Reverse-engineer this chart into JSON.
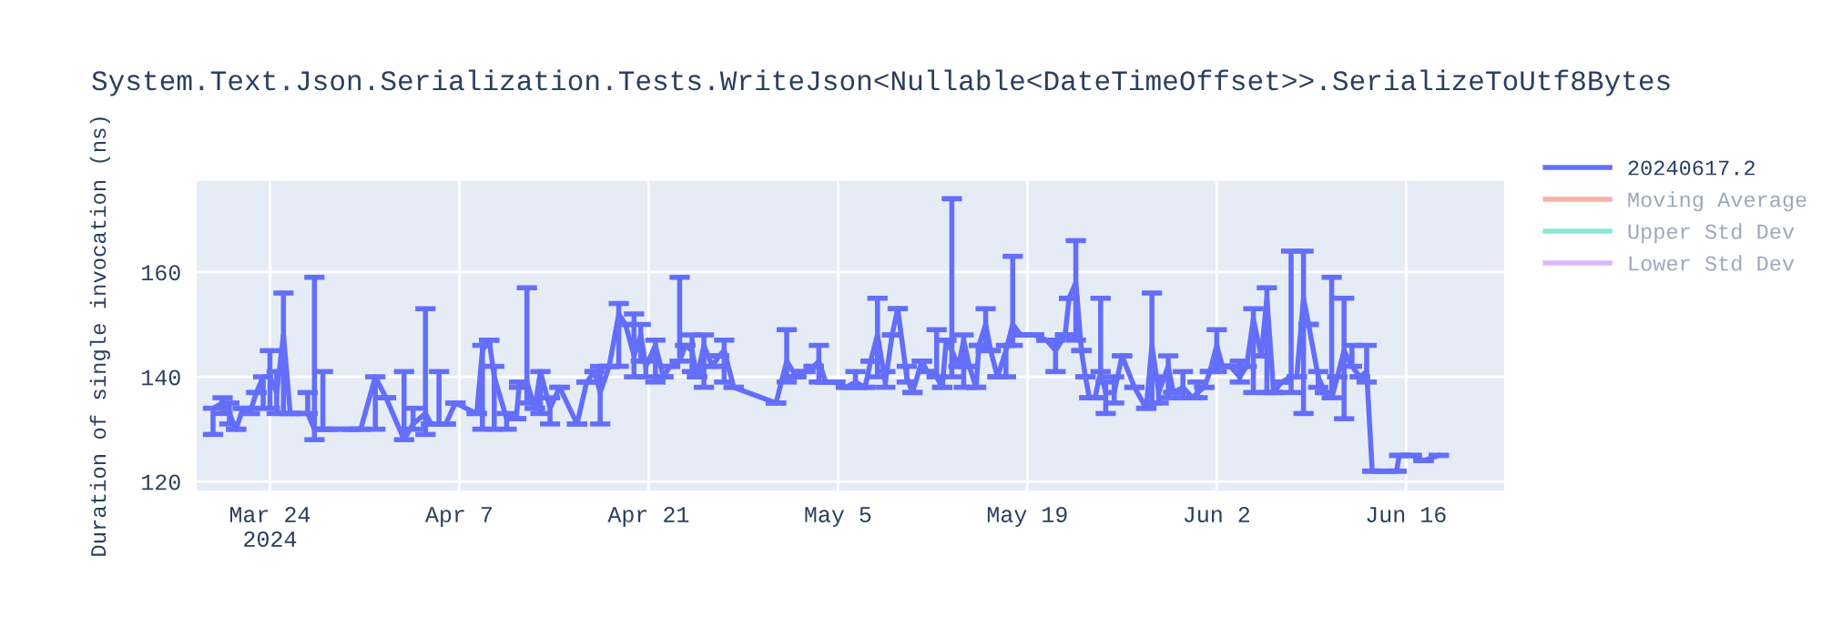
{
  "chart_data": {
    "type": "line",
    "title": "System.Text.Json.Serialization.Tests.WriteJson<Nullable<DateTimeOffset>>.SerializeToUtf8Bytes",
    "ylabel": "Duration of single invocation (ns)",
    "xlim": [
      "2024-03-18T14:00",
      "2024-06-23T06:00"
    ],
    "xticks": [
      {
        "value": "2024-03-24",
        "label": "Mar 24\n2024"
      },
      {
        "value": "2024-04-07",
        "label": "Apr 7"
      },
      {
        "value": "2024-04-21",
        "label": "Apr 21"
      },
      {
        "value": "2024-05-05",
        "label": "May 5"
      },
      {
        "value": "2024-05-19",
        "label": "May 19"
      },
      {
        "value": "2024-06-02",
        "label": "Jun 2"
      },
      {
        "value": "2024-06-16",
        "label": "Jun 16"
      }
    ],
    "ylim": [
      118.3,
      177.4
    ],
    "yticks": [
      120,
      140,
      160
    ],
    "grid": true,
    "legend": "right",
    "marker": "none",
    "line_style": "solid",
    "series": [
      {
        "name": "20240617.2",
        "color": "#636efa",
        "x": [
          "2024-03-19T19:00",
          "2024-03-20T12:00",
          "2024-03-21T00:00",
          "2024-03-21T12:00",
          "2024-03-22T00:00",
          "2024-03-22T12:00",
          "2024-03-23T00:00",
          "2024-03-23T12:00",
          "2024-03-24T00:00",
          "2024-03-24T12:00",
          "2024-03-25T00:00",
          "2024-03-25T12:00",
          "2024-03-26T19:00",
          "2024-03-27T07:00",
          "2024-03-27T22:00",
          "2024-03-28T07:00",
          "2024-03-30T00:00",
          "2024-03-30T17:00",
          "2024-03-31T19:00",
          "2024-04-01T14:00",
          "2024-04-02T22:00",
          "2024-04-03T14:00",
          "2024-04-04T12:00",
          "2024-04-04T22:00",
          "2024-04-05T12:00",
          "2024-04-06T00:00",
          "2024-04-06T17:00",
          "2024-04-08T07:00",
          "2024-04-08T17:00",
          "2024-04-09T05:00",
          "2024-04-09T14:00",
          "2024-04-10T12:00",
          "2024-04-11T05:00",
          "2024-04-11T10:00",
          "2024-04-12T00:00",
          "2024-04-12T14:00",
          "2024-04-13T00:00",
          "2024-04-13T17:00",
          "2024-04-14T10:00",
          "2024-04-15T17:00",
          "2024-04-16T10:00",
          "2024-04-17T00:00",
          "2024-04-17T10:00",
          "2024-04-18T02:00",
          "2024-04-18T19:00",
          "2024-04-19T07:00",
          "2024-04-19T22:00",
          "2024-04-20T10:00",
          "2024-04-20T19:00",
          "2024-04-21T12:00",
          "2024-04-22T02:00",
          "2024-04-22T14:00",
          "2024-04-23T07:00",
          "2024-04-23T17:00",
          "2024-04-24T05:00",
          "2024-04-24T14:00",
          "2024-04-25T02:00",
          "2024-04-25T17:00",
          "2024-04-26T05:00",
          "2024-04-26T14:00",
          "2024-04-27T07:00",
          "2024-04-30T10:00",
          "2024-05-01T05:00",
          "2024-05-01T22:00",
          "2024-05-02T14:00",
          "2024-05-03T05:00",
          "2024-05-03T14:00",
          "2024-05-04T02:00",
          "2024-05-04T19:00",
          "2024-05-05T14:00",
          "2024-05-06T07:00",
          "2024-05-07T00:00",
          "2024-05-07T10:00",
          "2024-05-07T22:00",
          "2024-05-08T12:00",
          "2024-05-09T00:00",
          "2024-05-09T10:00",
          "2024-05-10T02:00",
          "2024-05-10T12:00",
          "2024-05-11T05:00",
          "2024-05-11T14:00",
          "2024-05-12T07:00",
          "2024-05-12T17:00",
          "2024-05-13T00:00",
          "2024-05-13T10:00",
          "2024-05-13T22:00",
          "2024-05-14T07:00",
          "2024-05-14T17:00",
          "2024-05-15T05:00",
          "2024-05-15T10:00",
          "2024-05-15T22:00",
          "2024-05-16T07:00",
          "2024-05-16T19:00",
          "2024-05-17T10:00",
          "2024-05-17T22:00",
          "2024-05-18T12:00",
          "2024-05-19T12:00",
          "2024-05-20T10:00",
          "2024-05-21T02:00",
          "2024-05-21T19:00",
          "2024-05-22T02:00",
          "2024-05-22T14:00",
          "2024-05-23T00:00",
          "2024-05-23T07:00",
          "2024-05-23T14:00",
          "2024-05-24T00:00",
          "2024-05-24T10:00",
          "2024-05-24T19:00",
          "2024-05-25T10:00",
          "2024-05-26T00:00",
          "2024-05-26T22:00",
          "2024-05-27T19:00",
          "2024-05-28T05:00",
          "2024-05-28T17:00",
          "2024-05-29T10:00",
          "2024-05-29T19:00",
          "2024-05-30T12:00",
          "2024-05-31T05:00",
          "2024-05-31T14:00",
          "2024-06-01T02:00",
          "2024-06-01T12:00",
          "2024-06-02T00:00",
          "2024-06-02T10:00",
          "2024-06-03T00:00",
          "2024-06-03T17:00",
          "2024-06-04T05:00",
          "2024-06-04T17:00",
          "2024-06-05T07:00",
          "2024-06-05T17:00",
          "2024-06-06T05:00",
          "2024-06-06T19:00",
          "2024-06-07T12:00",
          "2024-06-07T22:00",
          "2024-06-08T10:00",
          "2024-06-08T19:00",
          "2024-06-09T12:00",
          "2024-06-10T00:00",
          "2024-06-10T12:00",
          "2024-06-10T22:00",
          "2024-06-11T10:00",
          "2024-06-12T00:00",
          "2024-06-12T14:00",
          "2024-06-13T02:00",
          "2024-06-13T12:00",
          "2024-06-14T10:00",
          "2024-06-15T07:00",
          "2024-06-15T12:00",
          "2024-06-16T10:00",
          "2024-06-17T07:00",
          "2024-06-18T10:00"
        ],
        "values": [
          134,
          135,
          133,
          130,
          134,
          133,
          137,
          140,
          140,
          137,
          148,
          133,
          133,
          130,
          130,
          130,
          130,
          130,
          140,
          136,
          128,
          131,
          133,
          131,
          131,
          131,
          135,
          133,
          145,
          147,
          140,
          132,
          132,
          138,
          139,
          134,
          141,
          134,
          138,
          131,
          139,
          141,
          137,
          142,
          152,
          150,
          144,
          148,
          142,
          146,
          140,
          142,
          143,
          146,
          145,
          140,
          146,
          142,
          144,
          145,
          138,
          135,
          143,
          140,
          141,
          142,
          143,
          139,
          139,
          138,
          139,
          138,
          143,
          148,
          139,
          148,
          153,
          140,
          137,
          143,
          141,
          140,
          138,
          147,
          145,
          142,
          147,
          142,
          138,
          146,
          150,
          145,
          140,
          145,
          150,
          148,
          148,
          147,
          145,
          148,
          155,
          158,
          145,
          140,
          136,
          136,
          141,
          137,
          137,
          144,
          138,
          134,
          146,
          137,
          142,
          137,
          138,
          136,
          137,
          138,
          141,
          146,
          142,
          142,
          140,
          142,
          151,
          144,
          155,
          137,
          139,
          140,
          140,
          155,
          150,
          140,
          137,
          136,
          140,
          145,
          142,
          140,
          141,
          122,
          122,
          122,
          125,
          125,
          124,
          125
        ],
        "errors": [
          [
            129,
            134
          ],
          [
            133,
            136
          ],
          [
            131,
            135
          ],
          null,
          null,
          null,
          null,
          [
            134,
            140
          ],
          [
            134,
            145
          ],
          [
            133,
            141
          ],
          [
            133,
            156
          ],
          null,
          [
            133,
            137
          ],
          [
            128,
            159
          ],
          [
            130,
            141
          ],
          null,
          null,
          null,
          [
            130,
            140
          ],
          null,
          [
            128,
            141
          ],
          [
            130,
            134
          ],
          [
            129,
            153
          ],
          null,
          [
            131,
            141
          ],
          null,
          null,
          null,
          [
            130,
            146
          ],
          null,
          [
            130,
            142
          ],
          [
            130,
            133
          ],
          null,
          [
            138,
            139
          ],
          [
            135,
            157
          ],
          null,
          [
            133,
            141
          ],
          [
            131,
            136
          ],
          null,
          null,
          null,
          null,
          [
            131,
            142
          ],
          null,
          [
            142,
            154
          ],
          null,
          [
            140,
            152
          ],
          [
            143,
            150
          ],
          [
            140,
            143
          ],
          [
            139,
            147
          ],
          null,
          null,
          [
            143,
            159
          ],
          null,
          [
            141,
            148
          ],
          null,
          [
            138,
            148
          ],
          null,
          null,
          [
            139,
            147
          ],
          null,
          null,
          [
            139,
            149
          ],
          null,
          null,
          null,
          [
            139,
            146
          ],
          null,
          null,
          null,
          [
            138,
            141
          ],
          null,
          null,
          [
            140,
            155
          ],
          [
            138,
            141
          ],
          null,
          null,
          [
            139,
            142
          ],
          null,
          null,
          null,
          [
            140,
            149
          ],
          null,
          null,
          [
            140,
            174
          ],
          null,
          [
            138,
            148
          ],
          null,
          null,
          null,
          [
            145,
            153
          ],
          null,
          null,
          [
            140,
            146
          ],
          [
            146,
            163
          ],
          null,
          null,
          null,
          [
            141,
            147
          ],
          null,
          null,
          [
            147,
            166
          ],
          null,
          null,
          null,
          null,
          [
            141,
            155
          ],
          [
            133,
            139
          ],
          [
            135,
            140
          ],
          null,
          null,
          null,
          [
            135,
            156
          ],
          [
            135,
            140
          ],
          [
            136,
            144
          ],
          null,
          [
            136,
            141
          ],
          null,
          [
            136,
            139
          ],
          null,
          null,
          [
            141,
            149
          ],
          null,
          null,
          [
            139,
            143
          ],
          null,
          [
            137,
            153
          ],
          null,
          [
            137,
            157
          ],
          null,
          null,
          [
            137,
            164
          ],
          null,
          [
            133,
            164
          ],
          null,
          [
            138,
            141
          ],
          null,
          [
            136,
            159
          ],
          null,
          [
            132,
            155
          ],
          [
            142,
            146
          ],
          null,
          [
            139,
            146
          ],
          null,
          null,
          null,
          null,
          null,
          null,
          null
        ]
      },
      {
        "name": "Moving Average",
        "color": "#ef553b"
      },
      {
        "name": "Upper Std Dev",
        "color": "#00cc96"
      },
      {
        "name": "Lower Std Dev",
        "color": "#ab63fa"
      }
    ]
  }
}
